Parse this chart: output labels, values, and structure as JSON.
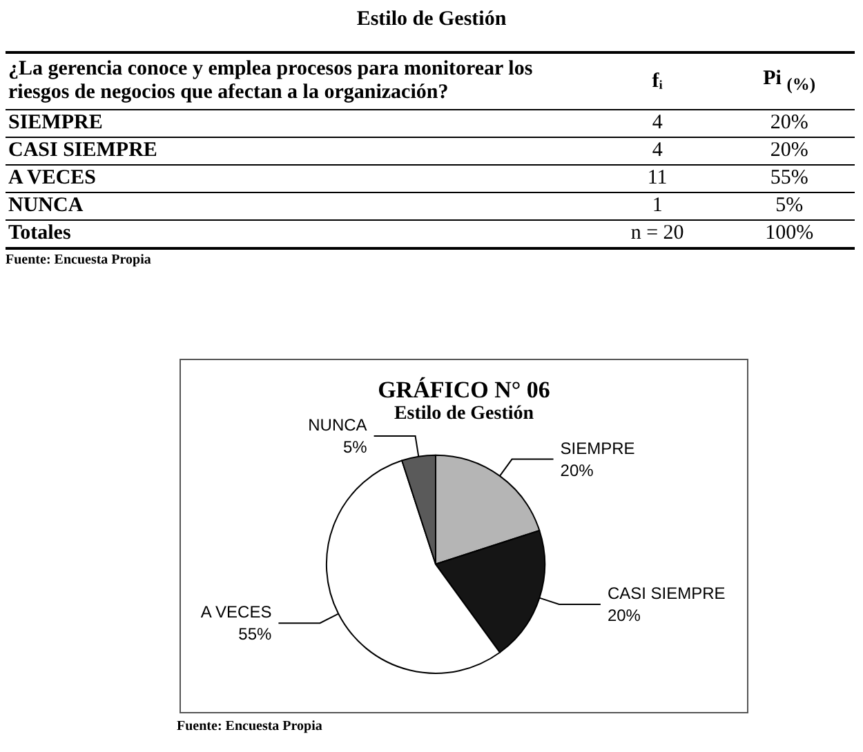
{
  "chart_data": [
    {
      "type": "other",
      "title": "Estilo de Gestión",
      "xlabel": "¿La gerencia conoce y emplea procesos para monitorear los riesgos de negocios que afectan a la organización?",
      "categories": [
        "SIEMPRE",
        "CASI SIEMPRE",
        "A VECES",
        "NUNCA"
      ],
      "series": [
        {
          "name": "fᵢ",
          "values": [
            4,
            4,
            11,
            1
          ]
        },
        {
          "name": "Pi $_{(%)}$",
          "values": [
            20,
            20,
            55,
            5
          ],
          "value_labels": [
            "20%",
            "20%",
            "55%",
            "5%"
          ]
        }
      ],
      "totals": [
        "n = 20",
        "100%"
      ],
      "data_labels": true,
      "annotations": [
        "Totales",
        "Fuente: Encuesta Propia"
      ]
    },
    {
      "type": "pie",
      "title": "GRÁFICO N° 06",
      "subtitle": "Estilo de Gestión",
      "categories": [
        "SIEMPRE",
        "CASI SIEMPRE",
        "A VECES",
        "NUNCA"
      ],
      "values": [
        20,
        20,
        55,
        5
      ],
      "value_labels": [
        "20%",
        "20%",
        "55%",
        "5%"
      ],
      "colors": [
        "#b5b5b5",
        "#151515",
        "#ffffff",
        "#5a5a5a"
      ],
      "data_labels": true,
      "legend": false,
      "annotations": [
        "Fuente: Encuesta Propia"
      ]
    }
  ]
}
